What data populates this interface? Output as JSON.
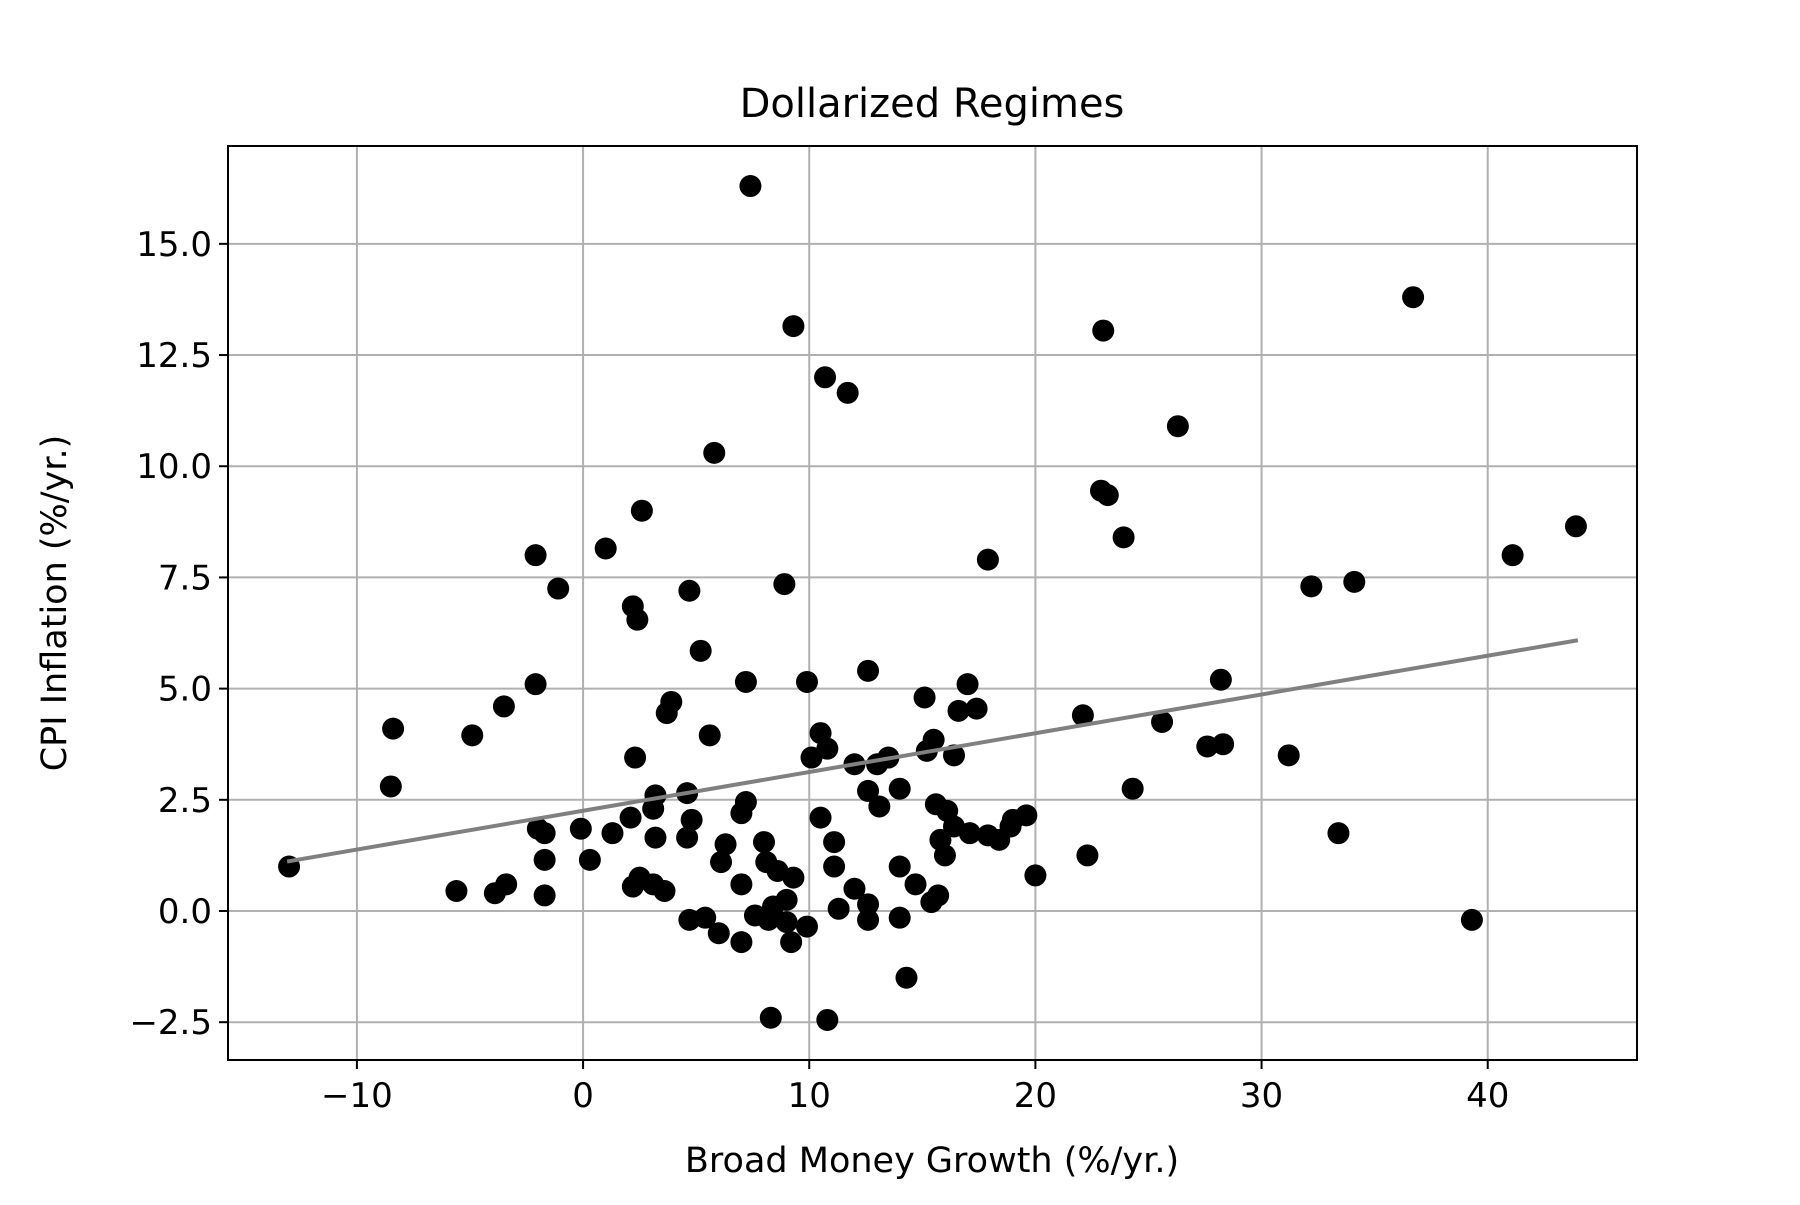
{
  "chart_data": {
    "type": "scatter",
    "title": "Dollarized Regimes",
    "xlabel": "Broad Money Growth (%/yr.)",
    "ylabel": "CPI Inflation (%/yr.)",
    "xlim": [
      -15.7,
      46.6
    ],
    "ylim": [
      -3.35,
      17.2
    ],
    "xticks": [
      -10,
      0,
      10,
      20,
      30,
      40
    ],
    "xtick_labels": [
      "−10",
      "0",
      "10",
      "20",
      "30",
      "40"
    ],
    "yticks": [
      -2.5,
      0.0,
      2.5,
      5.0,
      7.5,
      10.0,
      12.5,
      15.0
    ],
    "ytick_labels": [
      "−2.5",
      "0.0",
      "2.5",
      "5.0",
      "7.5",
      "10.0",
      "12.5",
      "15.0"
    ],
    "grid": true,
    "legend": "none",
    "colors": {
      "points": "#000000",
      "fit_line": "#808080",
      "grid": "#b0b0b0"
    },
    "points": [
      [
        7.4,
        16.3
      ],
      [
        9.3,
        13.15
      ],
      [
        36.7,
        13.8
      ],
      [
        23.0,
        13.05
      ],
      [
        10.7,
        12.0
      ],
      [
        11.7,
        11.65
      ],
      [
        5.8,
        10.3
      ],
      [
        26.3,
        10.9
      ],
      [
        22.9,
        9.45
      ],
      [
        23.2,
        9.35
      ],
      [
        43.9,
        8.65
      ],
      [
        2.6,
        9.0
      ],
      [
        23.9,
        8.4
      ],
      [
        1.0,
        8.15
      ],
      [
        -2.1,
        8.0
      ],
      [
        41.1,
        8.0
      ],
      [
        17.9,
        7.9
      ],
      [
        -1.1,
        7.25
      ],
      [
        8.9,
        7.35
      ],
      [
        4.7,
        7.2
      ],
      [
        32.2,
        7.3
      ],
      [
        34.1,
        7.4
      ],
      [
        2.2,
        6.85
      ],
      [
        2.4,
        6.55
      ],
      [
        5.2,
        5.85
      ],
      [
        -2.1,
        5.1
      ],
      [
        7.2,
        5.15
      ],
      [
        9.9,
        5.15
      ],
      [
        12.6,
        5.4
      ],
      [
        17.0,
        5.1
      ],
      [
        28.2,
        5.2
      ],
      [
        -8.4,
        4.1
      ],
      [
        -3.5,
        4.6
      ],
      [
        -4.9,
        3.95
      ],
      [
        3.9,
        4.7
      ],
      [
        3.7,
        4.45
      ],
      [
        15.1,
        4.8
      ],
      [
        16.6,
        4.5
      ],
      [
        17.4,
        4.55
      ],
      [
        22.1,
        4.4
      ],
      [
        5.6,
        3.95
      ],
      [
        10.5,
        4.0
      ],
      [
        10.8,
        3.65
      ],
      [
        10.1,
        3.45
      ],
      [
        15.5,
        3.85
      ],
      [
        15.2,
        3.6
      ],
      [
        16.4,
        3.5
      ],
      [
        25.6,
        4.25
      ],
      [
        27.6,
        3.7
      ],
      [
        28.3,
        3.75
      ],
      [
        31.2,
        3.5
      ],
      [
        2.3,
        3.45
      ],
      [
        12.0,
        3.3
      ],
      [
        13.0,
        3.3
      ],
      [
        13.5,
        3.45
      ],
      [
        -8.5,
        2.8
      ],
      [
        3.2,
        2.6
      ],
      [
        4.6,
        2.65
      ],
      [
        7.2,
        2.45
      ],
      [
        12.6,
        2.7
      ],
      [
        14.0,
        2.75
      ],
      [
        24.3,
        2.75
      ],
      [
        3.1,
        2.3
      ],
      [
        2.1,
        2.1
      ],
      [
        4.8,
        2.05
      ],
      [
        7.0,
        2.2
      ],
      [
        10.5,
        2.1
      ],
      [
        13.1,
        2.35
      ],
      [
        15.6,
        2.4
      ],
      [
        16.1,
        2.25
      ],
      [
        19.0,
        2.05
      ],
      [
        19.6,
        2.15
      ],
      [
        -2.0,
        1.85
      ],
      [
        -1.7,
        1.75
      ],
      [
        -0.1,
        1.85
      ],
      [
        1.3,
        1.75
      ],
      [
        3.2,
        1.65
      ],
      [
        4.6,
        1.65
      ],
      [
        6.3,
        1.5
      ],
      [
        8.0,
        1.55
      ],
      [
        11.1,
        1.55
      ],
      [
        15.8,
        1.6
      ],
      [
        16.4,
        1.9
      ],
      [
        17.1,
        1.75
      ],
      [
        17.9,
        1.7
      ],
      [
        18.4,
        1.6
      ],
      [
        18.9,
        1.9
      ],
      [
        -1.7,
        1.15
      ],
      [
        0.3,
        1.15
      ],
      [
        6.1,
        1.1
      ],
      [
        8.1,
        1.1
      ],
      [
        8.6,
        0.9
      ],
      [
        11.1,
        1.0
      ],
      [
        14.0,
        1.0
      ],
      [
        16.0,
        1.25
      ],
      [
        22.3,
        1.25
      ],
      [
        33.4,
        1.75
      ],
      [
        -13.0,
        1.0
      ],
      [
        -5.6,
        0.45
      ],
      [
        -3.9,
        0.4
      ],
      [
        -3.4,
        0.6
      ],
      [
        -1.7,
        0.35
      ],
      [
        2.2,
        0.55
      ],
      [
        2.5,
        0.75
      ],
      [
        3.1,
        0.6
      ],
      [
        3.6,
        0.45
      ],
      [
        7.0,
        0.6
      ],
      [
        9.3,
        0.75
      ],
      [
        12.0,
        0.5
      ],
      [
        14.7,
        0.6
      ],
      [
        20.0,
        0.8
      ],
      [
        4.7,
        -0.2
      ],
      [
        5.4,
        -0.15
      ],
      [
        6.0,
        -0.5
      ],
      [
        7.0,
        -0.7
      ],
      [
        7.6,
        -0.1
      ],
      [
        8.2,
        -0.2
      ],
      [
        8.4,
        0.1
      ],
      [
        9.0,
        0.25
      ],
      [
        9.0,
        -0.25
      ],
      [
        9.2,
        -0.7
      ],
      [
        9.9,
        -0.35
      ],
      [
        11.3,
        0.05
      ],
      [
        12.6,
        0.15
      ],
      [
        12.6,
        -0.2
      ],
      [
        14.0,
        -0.15
      ],
      [
        15.4,
        0.2
      ],
      [
        15.7,
        0.35
      ],
      [
        39.3,
        -0.2
      ],
      [
        14.3,
        -1.5
      ],
      [
        8.3,
        -2.4
      ],
      [
        10.8,
        -2.45
      ]
    ],
    "fit_line": {
      "x": [
        -13.0,
        43.9
      ],
      "y": [
        1.12,
        6.08
      ]
    }
  }
}
